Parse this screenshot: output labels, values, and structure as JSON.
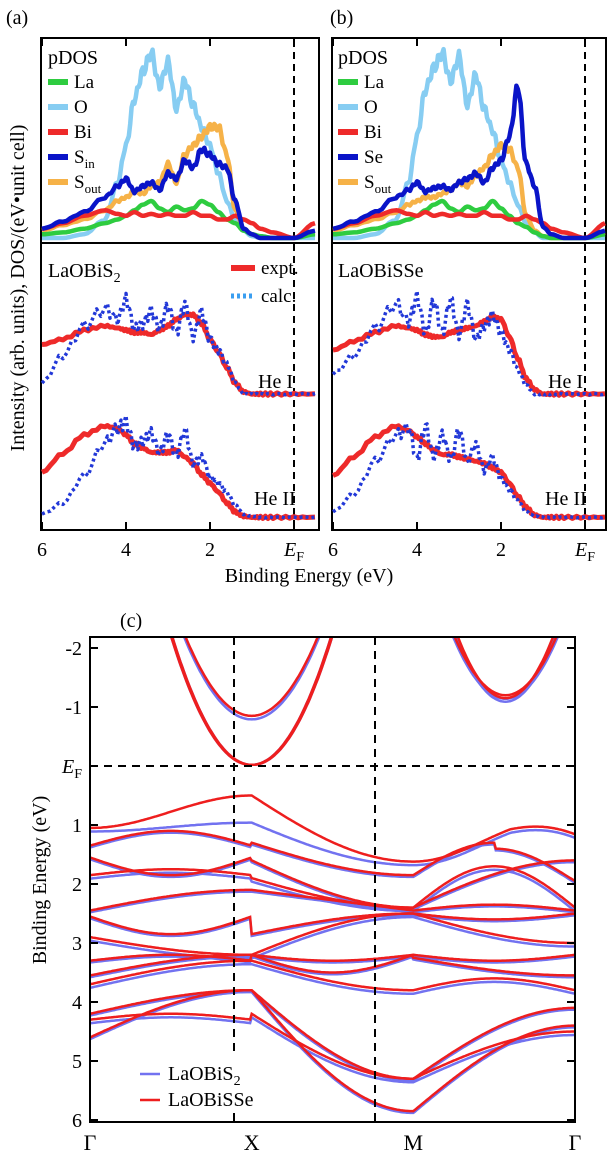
{
  "colors": {
    "La": "#2ecc40",
    "O": "#87cdf2",
    "Bi": "#ee2a2a",
    "Sin": "#0a14c8",
    "Sout": "#f6b248",
    "expt": "#ee2a2a",
    "calc": "#3a9ef0",
    "calc_b": "#2238d8",
    "band_s2": "#7272f0",
    "band_sse": "#ee1e1e"
  },
  "panels_top": {
    "a": {
      "label": "(a)",
      "material": "LaOBiS",
      "material_sub": "2"
    },
    "b": {
      "label": "(b)",
      "material": "LaOBiSSe",
      "material_sub": ""
    }
  },
  "pdos_title": "pDOS",
  "legend_a": [
    {
      "key": "La",
      "text": "La",
      "sub": ""
    },
    {
      "key": "O",
      "text": "O",
      "sub": ""
    },
    {
      "key": "Bi",
      "text": "Bi",
      "sub": ""
    },
    {
      "key": "Sin",
      "text": "S",
      "sub": "in"
    },
    {
      "key": "Sout",
      "text": "S",
      "sub": "out"
    }
  ],
  "legend_b": [
    {
      "key": "La",
      "text": "La",
      "sub": ""
    },
    {
      "key": "O",
      "text": "O",
      "sub": ""
    },
    {
      "key": "Bi",
      "text": "Bi",
      "sub": ""
    },
    {
      "key": "Sin",
      "text": "Se",
      "sub": ""
    },
    {
      "key": "Sout",
      "text": "S",
      "sub": "out"
    }
  ],
  "spec_legend": {
    "expt": "expt.",
    "calc": "calc."
  },
  "he1": "He I",
  "he2": "He II",
  "ylabel_top": "Intensity (arb. units),  DOS/(eV•unit cell)",
  "xlabel_top": "Binding Energy (eV)",
  "ef_main": "E",
  "ef_sub": "F",
  "panel_c_label": "(c)",
  "ylabel_c": "Binding Energy (eV)",
  "kpoints": [
    "Γ",
    "X",
    "M",
    "Γ"
  ],
  "band_legend": [
    {
      "text": "LaOBiS",
      "sub": "2",
      "key": "band_s2"
    },
    {
      "text": "LaOBiSSe",
      "sub": "",
      "key": "band_sse"
    }
  ],
  "chart_data": [
    {
      "type": "line",
      "panel": "(a) upper",
      "title": "pDOS",
      "xlabel": "Binding Energy (eV)",
      "ylabel": "DOS/(eV•unit cell)",
      "xlim": [
        6,
        -0.5
      ],
      "x_ticks": [
        "6",
        "4",
        "2",
        "EF"
      ],
      "x": [
        6.0,
        5.5,
        5.0,
        4.5,
        4.2,
        4.0,
        3.8,
        3.6,
        3.4,
        3.2,
        3.0,
        2.8,
        2.6,
        2.4,
        2.2,
        2.0,
        1.8,
        1.6,
        1.4,
        1.2,
        1.0,
        0.8,
        0.5,
        0.0,
        -0.5
      ],
      "series": [
        {
          "name": "La",
          "values": [
            0.02,
            0.03,
            0.05,
            0.08,
            0.1,
            0.12,
            0.15,
            0.18,
            0.2,
            0.16,
            0.14,
            0.17,
            0.15,
            0.16,
            0.2,
            0.18,
            0.14,
            0.1,
            0.08,
            0.04,
            0.02,
            0.01,
            0.0,
            0.0,
            0.02
          ]
        },
        {
          "name": "O",
          "values": [
            0.0,
            0.0,
            0.02,
            0.1,
            0.3,
            0.5,
            0.75,
            0.9,
            1.0,
            0.82,
            0.95,
            0.7,
            0.85,
            0.72,
            0.6,
            0.5,
            0.35,
            0.2,
            0.1,
            0.04,
            0.01,
            0.0,
            0.0,
            0.0,
            0.0
          ]
        },
        {
          "name": "Bi",
          "values": [
            0.05,
            0.08,
            0.12,
            0.15,
            0.13,
            0.12,
            0.14,
            0.12,
            0.13,
            0.12,
            0.13,
            0.12,
            0.12,
            0.14,
            0.12,
            0.12,
            0.1,
            0.1,
            0.12,
            0.1,
            0.08,
            0.05,
            0.03,
            0.0,
            0.08
          ]
        },
        {
          "name": "Sin",
          "values": [
            0.05,
            0.09,
            0.14,
            0.22,
            0.28,
            0.32,
            0.25,
            0.28,
            0.3,
            0.26,
            0.35,
            0.32,
            0.42,
            0.38,
            0.48,
            0.45,
            0.4,
            0.38,
            0.2,
            0.05,
            0.02,
            0.0,
            0.0,
            0.0,
            0.04
          ]
        },
        {
          "name": "Sout",
          "values": [
            0.04,
            0.07,
            0.1,
            0.15,
            0.2,
            0.22,
            0.25,
            0.24,
            0.28,
            0.3,
            0.4,
            0.3,
            0.45,
            0.5,
            0.55,
            0.6,
            0.6,
            0.45,
            0.15,
            0.05,
            0.02,
            0.0,
            0.0,
            0.0,
            0.03
          ]
        }
      ]
    },
    {
      "type": "line",
      "panel": "(b) upper",
      "title": "pDOS",
      "xlabel": "Binding Energy (eV)",
      "ylabel": "DOS/(eV•unit cell)",
      "xlim": [
        6,
        -0.5
      ],
      "x_ticks": [
        "6",
        "4",
        "2",
        "EF"
      ],
      "x": [
        6.0,
        5.5,
        5.0,
        4.5,
        4.2,
        4.0,
        3.8,
        3.6,
        3.4,
        3.2,
        3.0,
        2.8,
        2.6,
        2.4,
        2.2,
        2.0,
        1.8,
        1.6,
        1.4,
        1.2,
        1.0,
        0.8,
        0.5,
        0.0,
        -0.5
      ],
      "series": [
        {
          "name": "La",
          "values": [
            0.02,
            0.03,
            0.05,
            0.08,
            0.1,
            0.12,
            0.15,
            0.18,
            0.2,
            0.16,
            0.14,
            0.17,
            0.15,
            0.16,
            0.2,
            0.16,
            0.12,
            0.08,
            0.06,
            0.03,
            0.01,
            0.0,
            0.0,
            0.0,
            0.02
          ]
        },
        {
          "name": "O",
          "values": [
            0.0,
            0.0,
            0.02,
            0.1,
            0.3,
            0.55,
            0.8,
            0.92,
            1.0,
            0.85,
            0.98,
            0.72,
            0.88,
            0.7,
            0.58,
            0.42,
            0.3,
            0.18,
            0.08,
            0.03,
            0.0,
            0.0,
            0.0,
            0.0,
            0.0
          ]
        },
        {
          "name": "Bi",
          "values": [
            0.05,
            0.08,
            0.12,
            0.15,
            0.13,
            0.12,
            0.14,
            0.12,
            0.13,
            0.12,
            0.13,
            0.12,
            0.12,
            0.14,
            0.12,
            0.12,
            0.1,
            0.1,
            0.12,
            0.1,
            0.08,
            0.05,
            0.03,
            0.0,
            0.08
          ]
        },
        {
          "name": "Se",
          "values": [
            0.05,
            0.09,
            0.14,
            0.22,
            0.26,
            0.3,
            0.25,
            0.27,
            0.28,
            0.26,
            0.3,
            0.32,
            0.35,
            0.3,
            0.38,
            0.42,
            0.55,
            0.82,
            0.4,
            0.28,
            0.06,
            0.02,
            0.0,
            0.0,
            0.04
          ]
        },
        {
          "name": "Sout",
          "values": [
            0.04,
            0.07,
            0.1,
            0.14,
            0.18,
            0.2,
            0.22,
            0.22,
            0.24,
            0.26,
            0.3,
            0.28,
            0.34,
            0.38,
            0.45,
            0.5,
            0.48,
            0.38,
            0.12,
            0.04,
            0.01,
            0.0,
            0.0,
            0.0,
            0.03
          ]
        }
      ]
    },
    {
      "type": "line",
      "panel": "(a) lower LaOBiS2",
      "xlabel": "Binding Energy (eV)",
      "ylabel": "Intensity (arb. units)",
      "xlim": [
        6,
        -0.5
      ],
      "x": [
        6.0,
        5.5,
        5.0,
        4.5,
        4.2,
        4.0,
        3.8,
        3.6,
        3.4,
        3.2,
        3.0,
        2.8,
        2.6,
        2.4,
        2.2,
        2.0,
        1.8,
        1.6,
        1.4,
        1.2,
        1.0,
        0.8,
        0.5,
        0.0,
        -0.5
      ],
      "series": [
        {
          "name": "expt. He I",
          "values": [
            0.55,
            0.6,
            0.68,
            0.72,
            0.7,
            0.68,
            0.66,
            0.66,
            0.64,
            0.68,
            0.72,
            0.78,
            0.82,
            0.82,
            0.74,
            0.6,
            0.48,
            0.34,
            0.2,
            0.12,
            0.1,
            0.1,
            0.1,
            0.1,
            0.1
          ]
        },
        {
          "name": "calc. He I",
          "values": [
            0.2,
            0.45,
            0.72,
            0.88,
            0.78,
            0.96,
            0.7,
            0.74,
            0.86,
            0.7,
            0.9,
            0.66,
            0.92,
            0.62,
            0.85,
            0.6,
            0.5,
            0.38,
            0.2,
            0.1,
            0.1,
            0.1,
            0.1,
            0.1,
            0.1
          ]
        },
        {
          "name": "expt. He II",
          "values": [
            0.48,
            0.65,
            0.82,
            0.9,
            0.88,
            0.82,
            0.74,
            0.7,
            0.66,
            0.66,
            0.66,
            0.68,
            0.62,
            0.56,
            0.46,
            0.38,
            0.3,
            0.2,
            0.12,
            0.08,
            0.07,
            0.07,
            0.07,
            0.07,
            0.07
          ]
        },
        {
          "name": "calc. He II",
          "values": [
            0.1,
            0.2,
            0.45,
            0.75,
            0.88,
            0.94,
            0.72,
            0.76,
            0.84,
            0.66,
            0.82,
            0.64,
            0.86,
            0.56,
            0.62,
            0.44,
            0.38,
            0.3,
            0.18,
            0.1,
            0.08,
            0.07,
            0.07,
            0.07,
            0.07
          ]
        }
      ]
    },
    {
      "type": "line",
      "panel": "(b) lower LaOBiSSe",
      "xlabel": "Binding Energy (eV)",
      "ylabel": "Intensity (arb. units)",
      "xlim": [
        6,
        -0.5
      ],
      "x": [
        6.0,
        5.5,
        5.0,
        4.5,
        4.2,
        4.0,
        3.8,
        3.6,
        3.4,
        3.2,
        3.0,
        2.8,
        2.6,
        2.4,
        2.2,
        2.0,
        1.8,
        1.6,
        1.4,
        1.2,
        1.0,
        0.8,
        0.5,
        0.0,
        -0.5
      ],
      "series": [
        {
          "name": "expt. He I",
          "values": [
            0.5,
            0.58,
            0.66,
            0.72,
            0.7,
            0.68,
            0.64,
            0.62,
            0.62,
            0.66,
            0.68,
            0.7,
            0.72,
            0.76,
            0.8,
            0.78,
            0.62,
            0.42,
            0.24,
            0.14,
            0.1,
            0.1,
            0.1,
            0.1,
            0.1
          ]
        },
        {
          "name": "calc. He I",
          "values": [
            0.28,
            0.45,
            0.7,
            0.92,
            0.76,
            0.98,
            0.66,
            0.94,
            0.66,
            0.96,
            0.64,
            0.92,
            0.6,
            0.72,
            0.82,
            0.66,
            0.5,
            0.32,
            0.18,
            0.1,
            0.1,
            0.1,
            0.1,
            0.1,
            0.1
          ]
        },
        {
          "name": "expt. He II",
          "values": [
            0.45,
            0.62,
            0.8,
            0.9,
            0.86,
            0.8,
            0.74,
            0.68,
            0.64,
            0.64,
            0.62,
            0.6,
            0.58,
            0.56,
            0.52,
            0.48,
            0.38,
            0.26,
            0.16,
            0.09,
            0.07,
            0.07,
            0.07,
            0.07,
            0.07
          ]
        },
        {
          "name": "calc. He II",
          "values": [
            0.12,
            0.28,
            0.58,
            0.82,
            0.88,
            0.6,
            0.9,
            0.62,
            0.82,
            0.6,
            0.86,
            0.58,
            0.74,
            0.5,
            0.62,
            0.42,
            0.32,
            0.22,
            0.12,
            0.08,
            0.07,
            0.07,
            0.07,
            0.07,
            0.07
          ]
        }
      ]
    },
    {
      "type": "line",
      "panel": "(c)",
      "xlabel": "",
      "ylabel": "Binding Energy (eV)",
      "ylim": [
        -2,
        6
      ],
      "y_ticks": [
        "-2",
        "-1",
        "EF",
        "1",
        "2",
        "3",
        "4",
        "5",
        "6"
      ],
      "x_ticks": [
        "Γ",
        "X",
        "M",
        "Γ"
      ],
      "x": [
        0,
        0.5,
        1,
        1.5,
        2,
        2.5,
        3
      ],
      "series": [
        {
          "name": "LaOBiS2 cb1",
          "values": [
            null,
            -2.0,
            0.0,
            -2.0,
            null,
            null,
            null
          ]
        },
        {
          "name": "LaOBiS2 cb2",
          "values": [
            null,
            null,
            null,
            null,
            null,
            -1.2,
            null
          ]
        },
        {
          "name": "LaOBiS2 vb top",
          "values": [
            1.1,
            0.9,
            1.6,
            1.9,
            1.9,
            1.4,
            1.1
          ]
        },
        {
          "name": "LaOBiS2 vb mid",
          "values": [
            2.5,
            2.4,
            3.2,
            2.5,
            2.7,
            2.6,
            2.5
          ]
        },
        {
          "name": "LaOBiS2 vb low",
          "values": [
            4.6,
            4.3,
            3.8,
            5.8,
            5.2,
            4.6,
            4.6
          ]
        },
        {
          "name": "LaOBiSSe cb1",
          "values": [
            null,
            -2.0,
            0.0,
            -2.0,
            null,
            null,
            null
          ]
        },
        {
          "name": "LaOBiSSe cb2",
          "values": [
            null,
            null,
            null,
            null,
            null,
            -1.2,
            null
          ]
        },
        {
          "name": "LaOBiSSe vb top",
          "values": [
            1.0,
            0.5,
            1.4,
            1.6,
            1.6,
            0.95,
            1.0
          ]
        },
        {
          "name": "LaOBiSSe vb mid",
          "values": [
            2.4,
            2.2,
            3.1,
            2.4,
            2.6,
            2.5,
            2.4
          ]
        },
        {
          "name": "LaOBiSSe vb low",
          "values": [
            4.5,
            4.2,
            3.8,
            5.9,
            5.3,
            4.5,
            4.5
          ]
        }
      ]
    }
  ]
}
